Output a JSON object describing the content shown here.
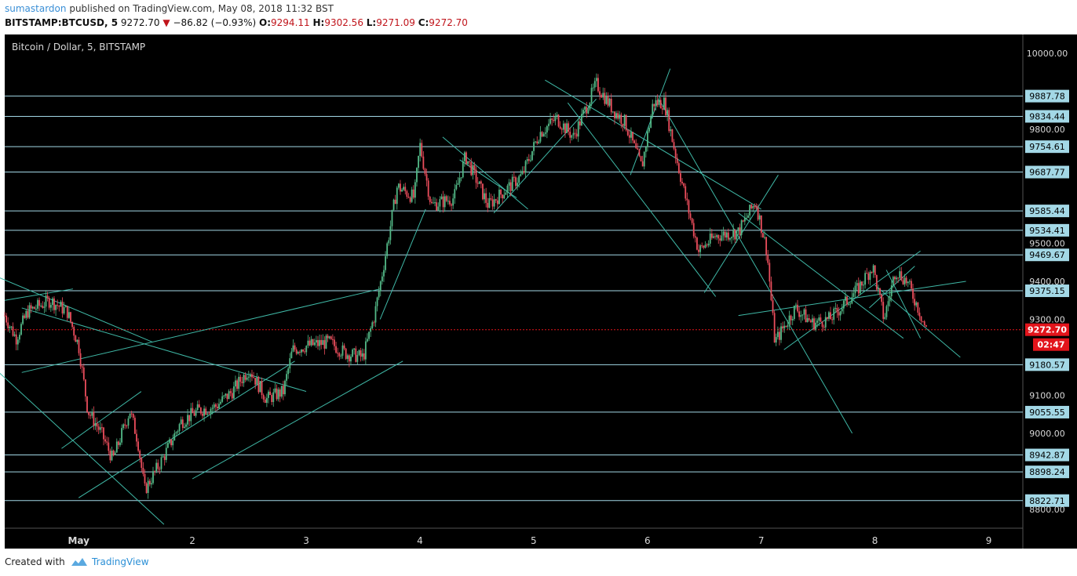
{
  "header": {
    "author": "sumastardon",
    "published_text": "published on TradingView.com, May 08, 2018 11:32 BST",
    "symbol": "BITSTAMP:BTCUSD, 5",
    "last": "9272.70",
    "change": "−86.82 (−0.93%)",
    "o_label": "O:",
    "o_value": "9294.11",
    "h_label": "H:",
    "h_value": "9302.56",
    "l_label": "L:",
    "l_value": "9271.09",
    "c_label": "C:",
    "c_value": "9272.70"
  },
  "footer": {
    "created_with": "Created with",
    "brand": "TradingView"
  },
  "colors": {
    "background": "#000000",
    "up": "#53b987",
    "down": "#eb4d5c",
    "level": "#a3d8e6",
    "trend": "#3fb8a6",
    "price_badge": "#e2141b"
  },
  "chart_data": {
    "type": "candlestick",
    "title": "Bitcoin / Dollar, 5, BITSTAMP",
    "ylim": [
      8750,
      10050
    ],
    "y_ticks": [
      "10000.00",
      "9800.00",
      "9500.00",
      "9400.00",
      "9300.00",
      "9100.00",
      "9000.00",
      "8800.00"
    ],
    "x_ticks": [
      {
        "label": "May",
        "day": 1
      },
      {
        "label": "2",
        "day": 2
      },
      {
        "label": "3",
        "day": 3
      },
      {
        "label": "4",
        "day": 4
      },
      {
        "label": "5",
        "day": 5
      },
      {
        "label": "6",
        "day": 6
      },
      {
        "label": "7",
        "day": 7
      },
      {
        "label": "8",
        "day": 8
      },
      {
        "label": "9",
        "day": 9
      }
    ],
    "xlim": [
      0.35,
      9.3
    ],
    "levels": [
      "9887.78",
      "9834.44",
      "9754.61",
      "9687.77",
      "9585.44",
      "9534.41",
      "9469.67",
      "9375.15",
      "9180.57",
      "9055.55",
      "8942.87",
      "8898.24",
      "8822.71"
    ],
    "current_price": "9272.70",
    "countdown": "02:47",
    "price_path": [
      [
        0.35,
        9310
      ],
      [
        0.45,
        9250
      ],
      [
        0.55,
        9320
      ],
      [
        0.75,
        9350
      ],
      [
        0.9,
        9320
      ],
      [
        1.0,
        9230
      ],
      [
        1.08,
        9060
      ],
      [
        1.2,
        9000
      ],
      [
        1.3,
        8930
      ],
      [
        1.45,
        9060
      ],
      [
        1.52,
        8980
      ],
      [
        1.58,
        8850
      ],
      [
        1.75,
        8940
      ],
      [
        1.9,
        9030
      ],
      [
        2.05,
        9060
      ],
      [
        2.2,
        9070
      ],
      [
        2.35,
        9110
      ],
      [
        2.5,
        9170
      ],
      [
        2.65,
        9090
      ],
      [
        2.8,
        9110
      ],
      [
        2.88,
        9220
      ],
      [
        3.0,
        9230
      ],
      [
        3.2,
        9240
      ],
      [
        3.35,
        9210
      ],
      [
        3.5,
        9200
      ],
      [
        3.6,
        9310
      ],
      [
        3.68,
        9440
      ],
      [
        3.8,
        9650
      ],
      [
        3.95,
        9620
      ],
      [
        4.0,
        9760
      ],
      [
        4.1,
        9600
      ],
      [
        4.3,
        9620
      ],
      [
        4.4,
        9730
      ],
      [
        4.6,
        9600
      ],
      [
        4.75,
        9640
      ],
      [
        4.9,
        9680
      ],
      [
        5.05,
        9790
      ],
      [
        5.2,
        9830
      ],
      [
        5.35,
        9780
      ],
      [
        5.55,
        9920
      ],
      [
        5.7,
        9850
      ],
      [
        5.8,
        9820
      ],
      [
        5.95,
        9700
      ],
      [
        6.05,
        9870
      ],
      [
        6.15,
        9870
      ],
      [
        6.25,
        9730
      ],
      [
        6.35,
        9600
      ],
      [
        6.45,
        9480
      ],
      [
        6.6,
        9520
      ],
      [
        6.8,
        9530
      ],
      [
        6.95,
        9610
      ],
      [
        7.05,
        9480
      ],
      [
        7.12,
        9240
      ],
      [
        7.3,
        9330
      ],
      [
        7.45,
        9290
      ],
      [
        7.6,
        9300
      ],
      [
        7.7,
        9330
      ],
      [
        7.85,
        9380
      ],
      [
        7.98,
        9440
      ],
      [
        8.08,
        9300
      ],
      [
        8.18,
        9430
      ],
      [
        8.28,
        9400
      ],
      [
        8.38,
        9330
      ],
      [
        8.45,
        9272.7
      ]
    ],
    "trend_lines": [
      [
        [
          0.3,
          9410
        ],
        [
          1.65,
          9240
        ]
      ],
      [
        [
          0.3,
          9160
        ],
        [
          1.75,
          8760
        ]
      ],
      [
        [
          0.35,
          9350
        ],
        [
          0.95,
          9380
        ]
      ],
      [
        [
          0.5,
          9160
        ],
        [
          3.65,
          9380
        ]
      ],
      [
        [
          0.5,
          9330
        ],
        [
          3.0,
          9110
        ]
      ],
      [
        [
          0.85,
          8960
        ],
        [
          1.55,
          9110
        ]
      ],
      [
        [
          1.0,
          8830
        ],
        [
          2.9,
          9190
        ]
      ],
      [
        [
          2.0,
          8880
        ],
        [
          3.85,
          9190
        ]
      ],
      [
        [
          3.65,
          9300
        ],
        [
          4.05,
          9590
        ]
      ],
      [
        [
          4.2,
          9780
        ],
        [
          4.95,
          9590
        ]
      ],
      [
        [
          4.35,
          9720
        ],
        [
          4.85,
          9620
        ]
      ],
      [
        [
          4.65,
          9580
        ],
        [
          5.55,
          9880
        ]
      ],
      [
        [
          5.1,
          9930
        ],
        [
          7.0,
          9590
        ]
      ],
      [
        [
          5.3,
          9870
        ],
        [
          6.6,
          9360
        ]
      ],
      [
        [
          5.85,
          9680
        ],
        [
          6.2,
          9960
        ]
      ],
      [
        [
          6.1,
          9880
        ],
        [
          7.8,
          9000
        ]
      ],
      [
        [
          6.5,
          9370
        ],
        [
          7.15,
          9680
        ]
      ],
      [
        [
          6.8,
          9580
        ],
        [
          8.25,
          9250
        ]
      ],
      [
        [
          6.8,
          9310
        ],
        [
          8.8,
          9400
        ]
      ],
      [
        [
          7.2,
          9220
        ],
        [
          8.4,
          9480
        ]
      ],
      [
        [
          7.95,
          9330
        ],
        [
          8.35,
          9440
        ]
      ],
      [
        [
          8.0,
          9390
        ],
        [
          8.75,
          9200
        ]
      ],
      [
        [
          8.1,
          9430
        ],
        [
          8.4,
          9250
        ]
      ]
    ]
  }
}
